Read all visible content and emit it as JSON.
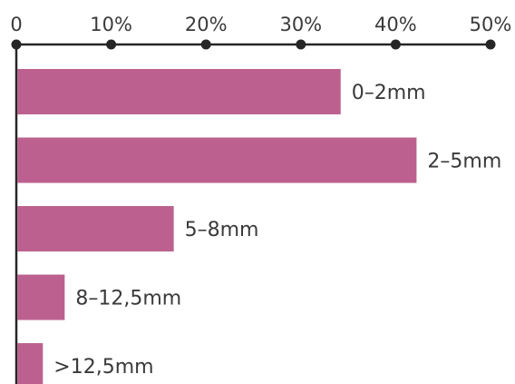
{
  "chart_data": {
    "type": "bar",
    "orientation": "horizontal",
    "axis_position": "top",
    "categories": [
      "0–2mm",
      "2–5mm",
      "5–8mm",
      "8–12,5mm",
      ">12,5mm"
    ],
    "values": [
      34.2,
      42.2,
      16.6,
      5.1,
      2.8
    ],
    "xlim": [
      0,
      50
    ],
    "ticks": [
      0,
      10,
      20,
      30,
      40,
      50
    ],
    "tick_labels": [
      "0",
      "10%",
      "20%",
      "30%",
      "40%",
      "50%"
    ],
    "grid": false,
    "title": "",
    "xlabel": "",
    "ylabel": ""
  },
  "colors": {
    "bar": "#bc618f",
    "axis": "#262626",
    "text": "#3a3a3a"
  }
}
